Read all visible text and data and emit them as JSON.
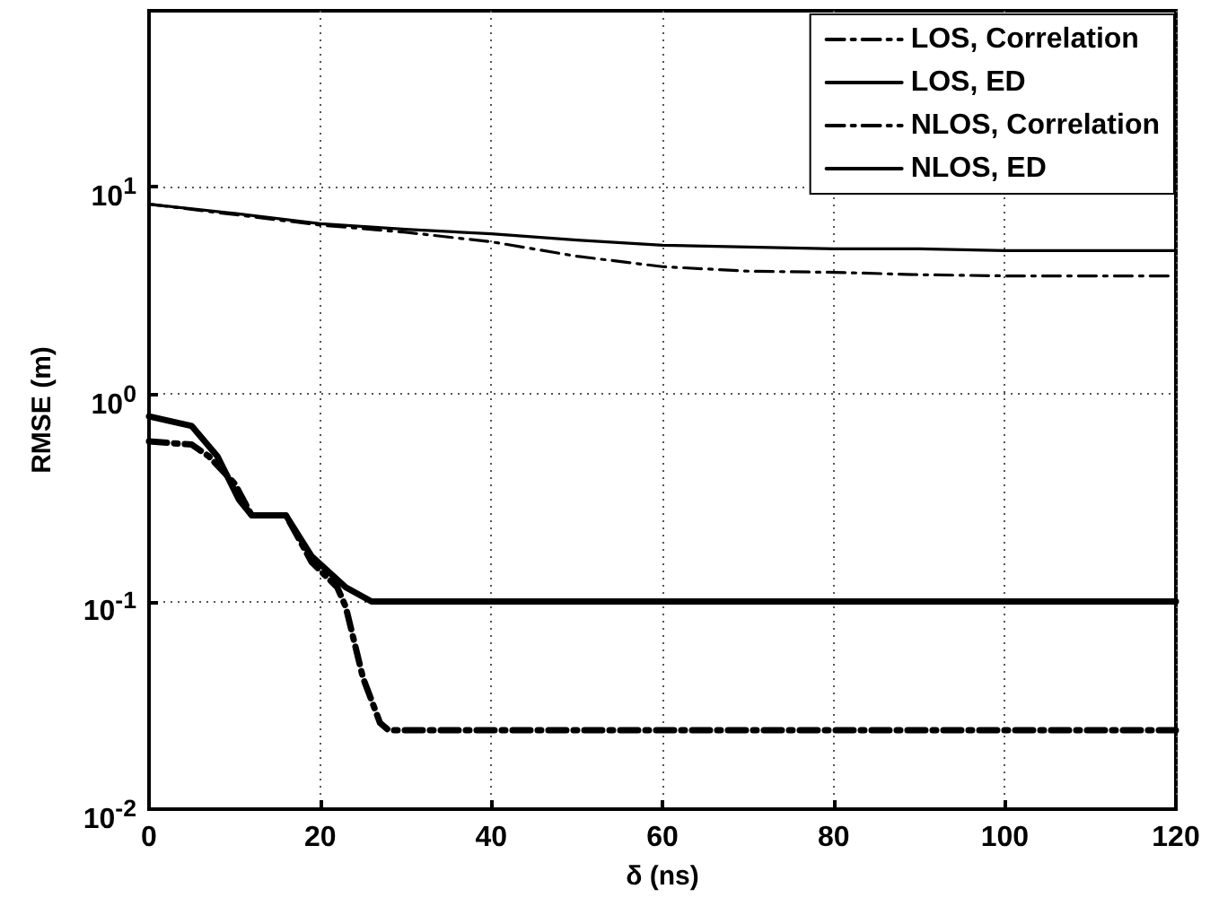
{
  "chart_data": {
    "type": "line",
    "xlabel": "δ (ns)",
    "ylabel": "RMSE (m)",
    "xlim": [
      0,
      120
    ],
    "xticks": [
      0,
      20,
      40,
      60,
      80,
      100,
      120
    ],
    "ylim": [
      0.01,
      70
    ],
    "yticks": [
      {
        "value": 0.01,
        "label": "10$^{-2}$"
      },
      {
        "value": 0.1,
        "label": "10$^{-1}$"
      },
      {
        "value": 1,
        "label": "10$^{0}$"
      },
      {
        "value": 10,
        "label": "10$^{1}$"
      }
    ],
    "log": "y",
    "grid": true,
    "legend": "top right",
    "marker": "none",
    "series": [
      {
        "name": "LOS, Correlation",
        "color": "#000000",
        "line_style": "dashed",
        "x": [
          0,
          5,
          7,
          10,
          12,
          16,
          19,
          22,
          23,
          25,
          27,
          28,
          120
        ],
        "values": [
          0.59,
          0.57,
          0.5,
          0.37,
          0.26,
          0.26,
          0.155,
          0.117,
          0.094,
          0.043,
          0.026,
          0.024,
          0.024
        ]
      },
      {
        "name": "LOS, ED",
        "color": "#000000",
        "line_style": "solid",
        "x": [
          0,
          5,
          8,
          10.5,
          12,
          16,
          19,
          23,
          26,
          120
        ],
        "values": [
          0.78,
          0.7,
          0.5,
          0.31,
          0.26,
          0.26,
          0.165,
          0.117,
          0.1,
          0.1
        ]
      },
      {
        "name": "NLOS, Correlation",
        "color": "#000000",
        "line_style": "dashed",
        "x": [
          0,
          10,
          20,
          30,
          40,
          50,
          60,
          70,
          80,
          90,
          100,
          110,
          120
        ],
        "values": [
          8.2,
          7.3,
          6.5,
          6.0,
          5.4,
          4.6,
          4.1,
          3.9,
          3.85,
          3.75,
          3.7,
          3.7,
          3.7
        ]
      },
      {
        "name": "NLOS, ED",
        "color": "#000000",
        "line_style": "solid",
        "x": [
          0,
          10,
          20,
          30,
          40,
          50,
          60,
          70,
          80,
          90,
          100,
          110,
          120
        ],
        "values": [
          8.2,
          7.4,
          6.6,
          6.2,
          5.9,
          5.5,
          5.2,
          5.1,
          5.0,
          5.0,
          4.9,
          4.9,
          4.9
        ]
      }
    ]
  }
}
